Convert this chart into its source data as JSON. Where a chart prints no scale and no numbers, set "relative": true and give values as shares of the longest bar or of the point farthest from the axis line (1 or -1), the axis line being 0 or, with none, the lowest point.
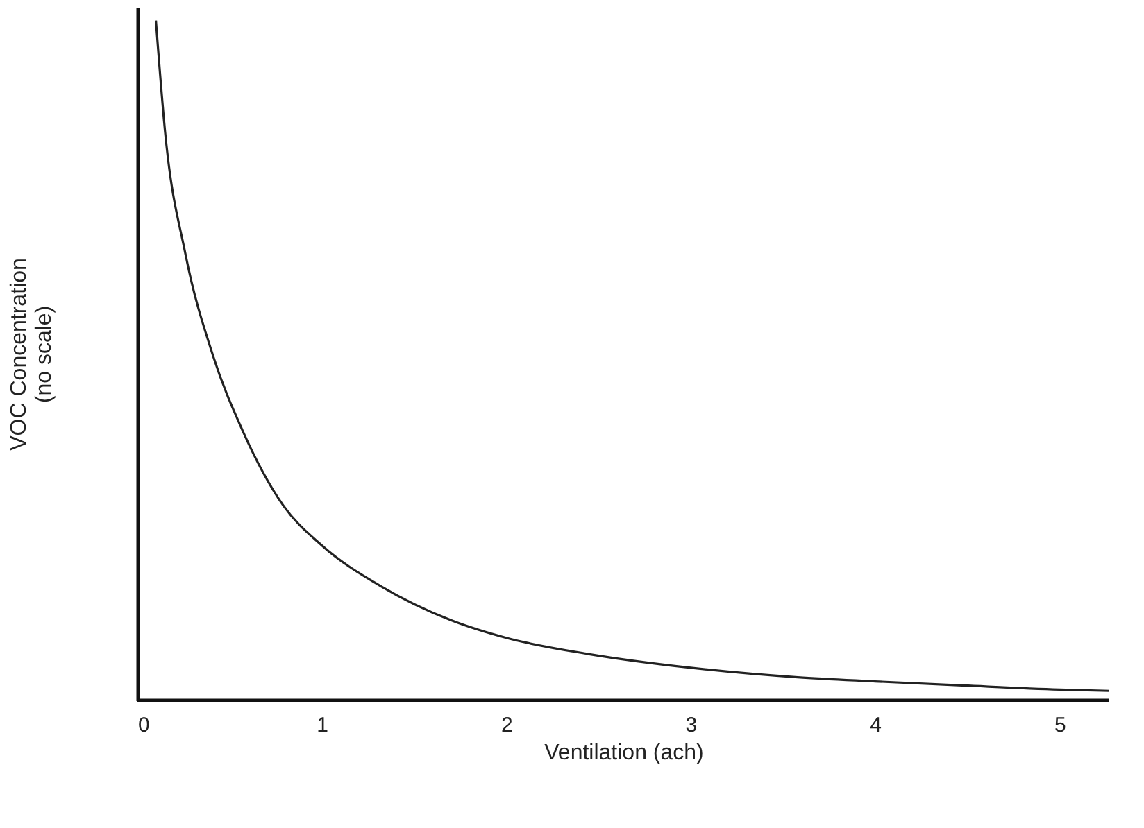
{
  "chart_data": {
    "type": "line",
    "xlabel": "Ventilation (ach)",
    "ylabel": "VOC Concentration\n(no scale)",
    "relative": true,
    "xlim": [
      0,
      5.27
    ],
    "xticks": [
      0,
      1,
      2,
      3,
      4,
      5
    ],
    "grid": false,
    "marker": "none",
    "line_style": "solid",
    "series": [
      {
        "color": "#222222",
        "x": [
          0.1,
          0.15,
          0.26,
          0.41,
          0.57,
          0.79,
          1.0,
          1.32,
          1.7,
          2.0,
          2.45,
          3.0,
          3.58,
          4.0,
          4.48,
          5.0,
          5.27
        ],
        "values": [
          1,
          0.836,
          0.657,
          0.507,
          0.397,
          0.287,
          0.228,
          0.168,
          0.118,
          0.092,
          0.068,
          0.048,
          0.034,
          0.028,
          0.022,
          0.016,
          0.014
        ]
      }
    ]
  }
}
